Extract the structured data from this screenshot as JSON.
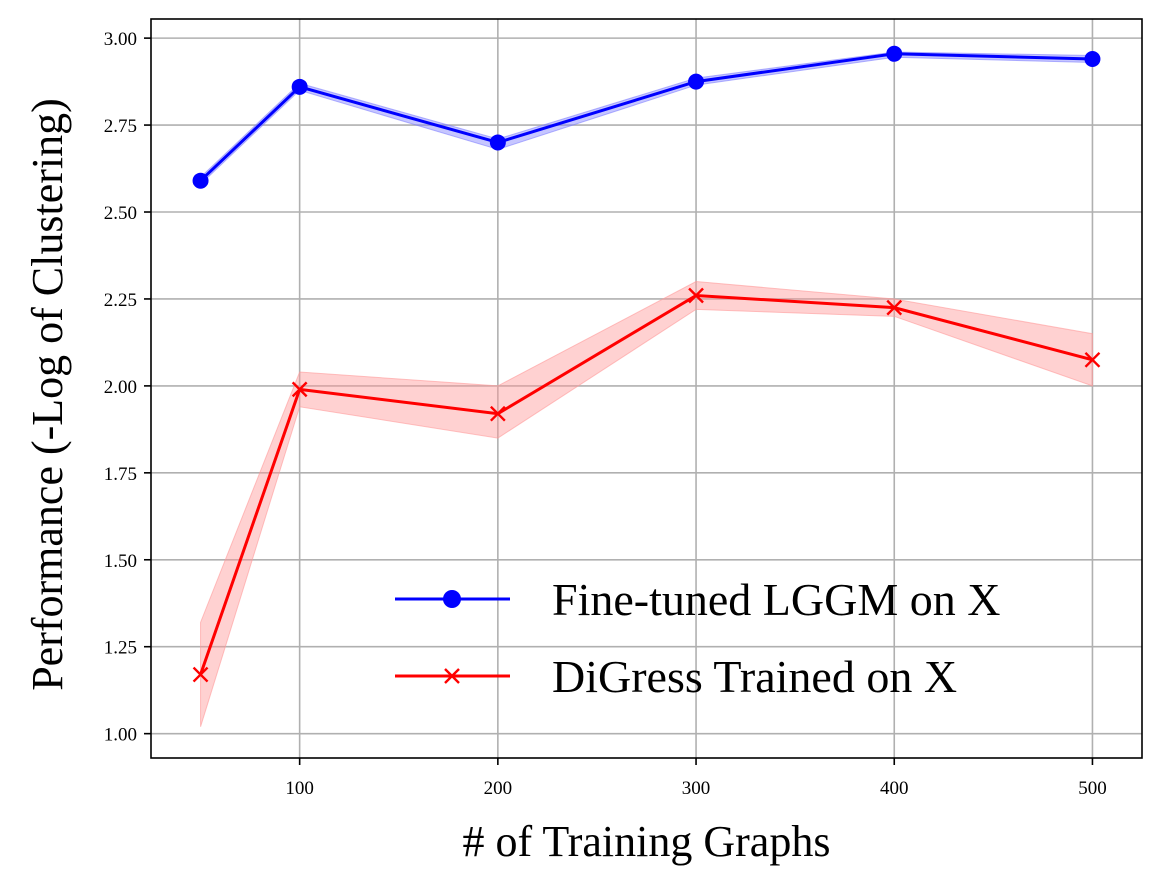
{
  "chart_data": {
    "type": "line",
    "title": "",
    "xlabel": "# of Training Graphs",
    "ylabel": "Performance (-Log of Clustering)",
    "xlim": [
      25,
      525
    ],
    "ylim": [
      0.93,
      3.055
    ],
    "xticks": [
      100,
      200,
      300,
      400,
      500
    ],
    "xtick_labels": [
      "100",
      "200",
      "300",
      "400",
      "500"
    ],
    "yticks": [
      1.0,
      1.25,
      1.5,
      1.75,
      2.0,
      2.25,
      2.5,
      2.75,
      3.0
    ],
    "ytick_labels": [
      "1.00",
      "1.25",
      "1.50",
      "1.75",
      "2.00",
      "2.25",
      "2.50",
      "2.75",
      "3.00"
    ],
    "grid": true,
    "legend_position": "lower-right",
    "series": [
      {
        "name": "Fine-tuned LGGM on X",
        "color": "#0000ff",
        "band_color": "#8080ff",
        "marker": "circle",
        "x": [
          50,
          100,
          200,
          300,
          400,
          500
        ],
        "y": [
          2.59,
          2.86,
          2.7,
          2.875,
          2.955,
          2.94
        ],
        "lower": [
          2.58,
          2.85,
          2.68,
          2.865,
          2.945,
          2.93
        ],
        "upper": [
          2.6,
          2.87,
          2.71,
          2.885,
          2.96,
          2.95
        ]
      },
      {
        "name": "DiGress Trained on X",
        "color": "#ff0000",
        "band_color": "#ff9999",
        "marker": "x",
        "x": [
          50,
          100,
          200,
          300,
          400,
          500
        ],
        "y": [
          1.17,
          1.99,
          1.92,
          2.26,
          2.225,
          2.075
        ],
        "lower": [
          1.02,
          1.94,
          1.85,
          2.22,
          2.2,
          2.0
        ],
        "upper": [
          1.32,
          2.04,
          2.0,
          2.3,
          2.25,
          2.15
        ]
      }
    ]
  }
}
